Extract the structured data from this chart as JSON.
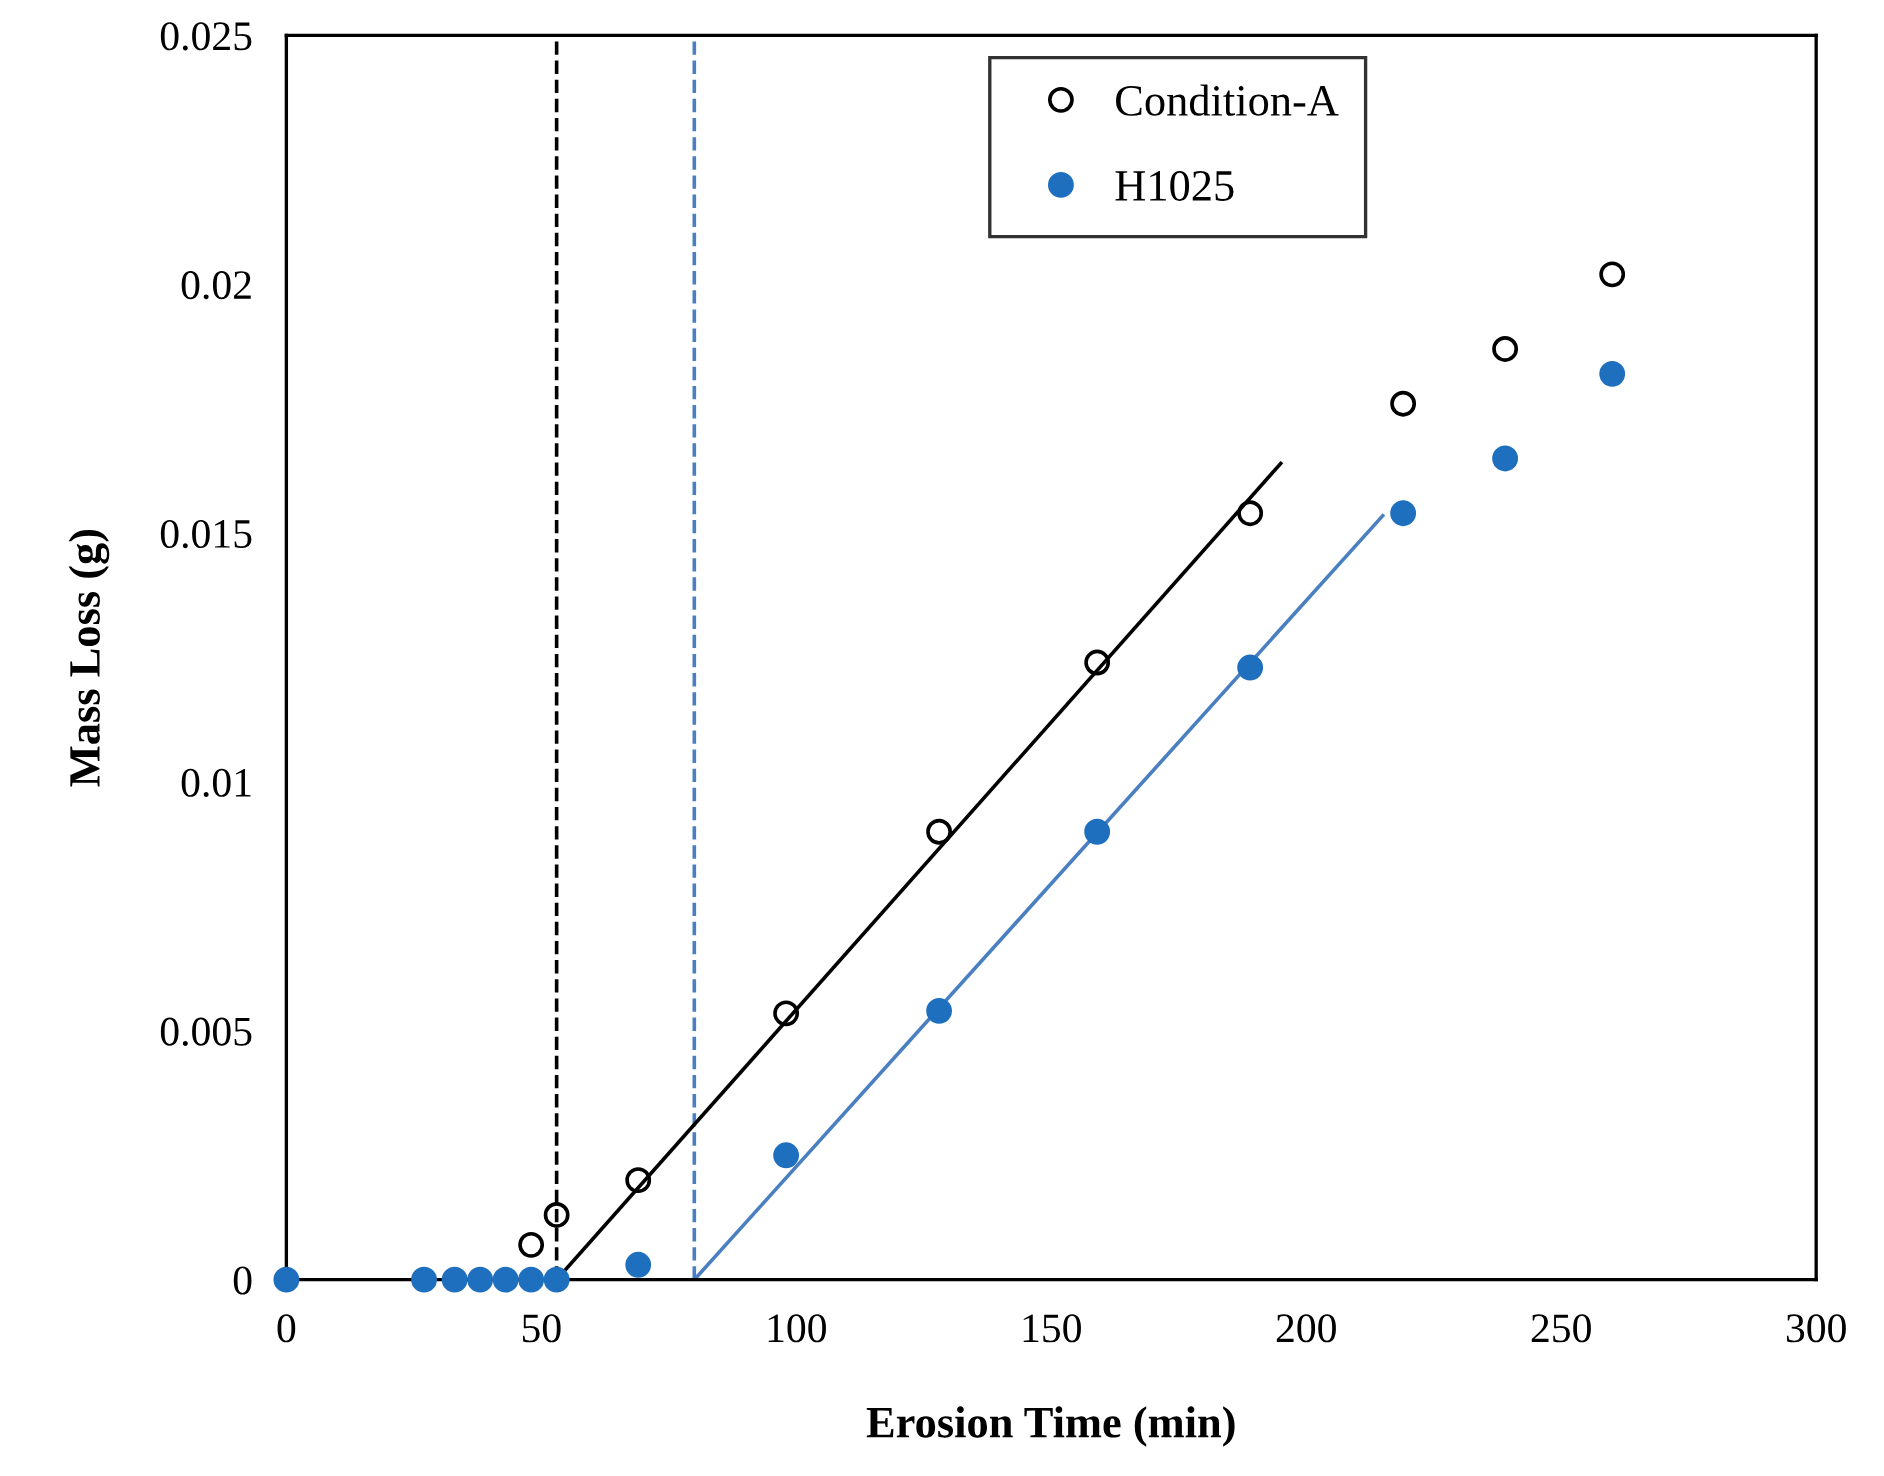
{
  "chart_data": {
    "type": "scatter",
    "xlabel": "Erosion Time (min)",
    "ylabel": "Mass Loss (g)",
    "xlim": [
      0,
      300
    ],
    "xticks": [
      0,
      50,
      100,
      150,
      200,
      250,
      300
    ],
    "ylim": [
      0,
      0.025
    ],
    "yticks": [
      {
        "value": 0,
        "label": "0"
      },
      0.005,
      0.01,
      0.015,
      0.02,
      0.025
    ],
    "grid": false,
    "legend": "top right",
    "marker": "circle",
    "series": [
      {
        "name": "Condition-A",
        "color": "#000000",
        "x": [
          48,
          53,
          69,
          98,
          128,
          159,
          189,
          219,
          239,
          260
        ],
        "values": [
          0.0007,
          0.0013,
          0.002,
          0.00535,
          0.009,
          0.0124,
          0.0154,
          0.0176,
          0.0187,
          0.0202
        ]
      },
      {
        "name": "H1025",
        "color": "#1f6fbf",
        "x": [
          0,
          27,
          33,
          38,
          43,
          48,
          53,
          69,
          98,
          128,
          159,
          189,
          219,
          239,
          260
        ],
        "values": [
          0,
          0,
          0,
          0,
          0,
          0,
          0,
          0.0003,
          0.0025,
          0.0054,
          0.009,
          0.0123,
          0.0154,
          0.0165,
          0.0182
        ]
      },
      {
        "type": "line",
        "color": "#000000",
        "marker": "none",
        "x": [
          53,
          195
        ],
        "values": [
          0,
          0.0164
        ]
      },
      {
        "type": "line",
        "color": "#4a7fc1",
        "marker": "none",
        "x": [
          80,
          215
        ],
        "values": [
          0,
          0.01535
        ]
      }
    ],
    "ref_lines": [
      {
        "axis": "x",
        "value": 53,
        "color": "#000000",
        "line_style": "dashed"
      },
      {
        "axis": "x",
        "value": 80,
        "color": "#4a7fc1",
        "line_style": "dashed"
      }
    ]
  }
}
